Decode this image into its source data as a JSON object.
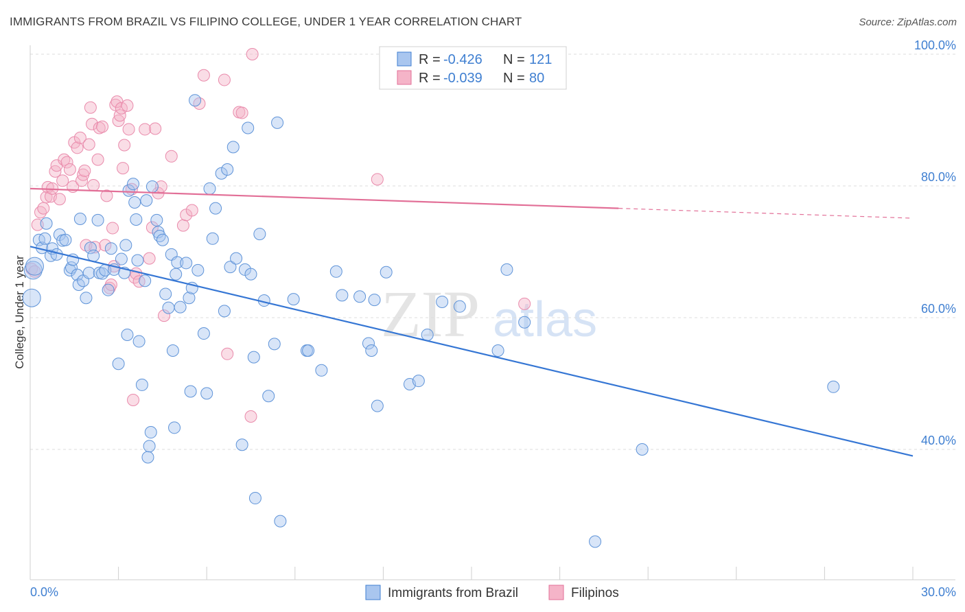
{
  "title": "IMMIGRANTS FROM BRAZIL VS FILIPINO COLLEGE, UNDER 1 YEAR CORRELATION CHART",
  "source": "Source: ZipAtlas.com",
  "watermark": {
    "zip": "ZIP",
    "atlas": "atlas"
  },
  "colors": {
    "blue": "#3f7fd1",
    "blue_fill": "#a9c6ef",
    "pink": "#e26f97",
    "pink_fill": "#f5b4c8",
    "grid": "#d9d9d9"
  },
  "legend": {
    "rows": [
      {
        "r_label": "R =",
        "r_value": "-0.426",
        "n_label": "N =",
        "n_value": "121"
      },
      {
        "r_label": "R =",
        "r_value": "-0.039",
        "n_label": "N =",
        "n_value": "80"
      }
    ]
  },
  "bottom_legend": [
    "Immigrants from Brazil",
    "Filipinos"
  ],
  "chart_data": {
    "type": "scatter",
    "title": "IMMIGRANTS FROM BRAZIL VS FILIPINO COLLEGE, UNDER 1 YEAR CORRELATION CHART",
    "xlabel": "",
    "ylabel": "College, Under 1 year",
    "xlim": [
      0,
      30
    ],
    "ylim": [
      20,
      100
    ],
    "x_tick_labels": [
      "0.0%",
      "30.0%"
    ],
    "y_tick_labels": [
      "100.0%",
      "80.0%",
      "60.0%",
      "40.0%"
    ],
    "y_ticks": [
      100,
      80,
      60,
      40
    ],
    "grid": true,
    "legend_position": "top-center",
    "series": [
      {
        "name": "Immigrants from Brazil",
        "color": "#3f7fd1",
        "r": -0.426,
        "n": 121,
        "trend": {
          "x": [
            0,
            30
          ],
          "y": [
            70.8,
            39.0
          ]
        },
        "points": [
          [
            0.05,
            63.0
          ],
          [
            0.1,
            67.2
          ],
          [
            0.15,
            67.8
          ],
          [
            0.3,
            71.8
          ],
          [
            0.4,
            70.6
          ],
          [
            0.5,
            72.0
          ],
          [
            0.55,
            74.3
          ],
          [
            0.7,
            69.4
          ],
          [
            0.75,
            70.5
          ],
          [
            0.9,
            69.6
          ],
          [
            1.0,
            72.6
          ],
          [
            1.1,
            71.7
          ],
          [
            1.2,
            71.8
          ],
          [
            1.35,
            67.2
          ],
          [
            1.4,
            67.6
          ],
          [
            1.45,
            68.8
          ],
          [
            1.6,
            66.5
          ],
          [
            1.65,
            65.0
          ],
          [
            1.7,
            75.0
          ],
          [
            1.8,
            65.6
          ],
          [
            1.9,
            63.0
          ],
          [
            2.0,
            66.8
          ],
          [
            2.05,
            70.6
          ],
          [
            2.15,
            69.4
          ],
          [
            2.3,
            74.8
          ],
          [
            2.35,
            66.8
          ],
          [
            2.45,
            66.7
          ],
          [
            2.55,
            67.2
          ],
          [
            2.65,
            64.2
          ],
          [
            2.75,
            70.5
          ],
          [
            2.85,
            67.3
          ],
          [
            3.0,
            53.0
          ],
          [
            3.1,
            68.9
          ],
          [
            3.2,
            66.8
          ],
          [
            3.25,
            71.0
          ],
          [
            3.3,
            57.4
          ],
          [
            3.35,
            79.3
          ],
          [
            3.5,
            80.3
          ],
          [
            3.55,
            77.5
          ],
          [
            3.6,
            74.9
          ],
          [
            3.65,
            68.7
          ],
          [
            3.7,
            56.4
          ],
          [
            3.8,
            49.8
          ],
          [
            3.9,
            65.6
          ],
          [
            3.95,
            77.8
          ],
          [
            4.0,
            38.8
          ],
          [
            4.05,
            40.5
          ],
          [
            4.1,
            42.6
          ],
          [
            4.15,
            79.9
          ],
          [
            4.3,
            74.8
          ],
          [
            4.35,
            73.0
          ],
          [
            4.4,
            72.4
          ],
          [
            4.5,
            71.8
          ],
          [
            4.6,
            63.6
          ],
          [
            4.7,
            61.5
          ],
          [
            4.8,
            69.6
          ],
          [
            4.85,
            55.0
          ],
          [
            4.9,
            43.3
          ],
          [
            4.95,
            66.6
          ],
          [
            5.0,
            68.4
          ],
          [
            5.1,
            61.6
          ],
          [
            5.3,
            68.3
          ],
          [
            5.4,
            63.0
          ],
          [
            5.45,
            48.8
          ],
          [
            5.5,
            64.5
          ],
          [
            5.6,
            93.0
          ],
          [
            5.7,
            67.2
          ],
          [
            5.9,
            57.6
          ],
          [
            6.0,
            48.5
          ],
          [
            6.1,
            79.6
          ],
          [
            6.2,
            72.0
          ],
          [
            6.3,
            76.6
          ],
          [
            6.5,
            81.9
          ],
          [
            6.6,
            61.0
          ],
          [
            6.7,
            82.5
          ],
          [
            6.8,
            67.7
          ],
          [
            6.9,
            85.9
          ],
          [
            7.0,
            69.0
          ],
          [
            7.2,
            40.7
          ],
          [
            7.3,
            67.3
          ],
          [
            7.4,
            88.8
          ],
          [
            7.5,
            66.6
          ],
          [
            7.6,
            54.0
          ],
          [
            7.65,
            32.6
          ],
          [
            7.8,
            72.7
          ],
          [
            7.95,
            62.6
          ],
          [
            8.1,
            48.1
          ],
          [
            8.3,
            56.0
          ],
          [
            8.4,
            89.6
          ],
          [
            8.5,
            29.1
          ],
          [
            8.95,
            62.8
          ],
          [
            9.4,
            55.0
          ],
          [
            9.45,
            55.0
          ],
          [
            9.9,
            52.0
          ],
          [
            10.4,
            67.0
          ],
          [
            10.6,
            63.4
          ],
          [
            11.2,
            63.2
          ],
          [
            11.5,
            56.1
          ],
          [
            11.6,
            55.0
          ],
          [
            11.7,
            62.7
          ],
          [
            11.8,
            46.6
          ],
          [
            12.1,
            66.9
          ],
          [
            12.9,
            49.9
          ],
          [
            13.2,
            50.4
          ],
          [
            13.5,
            57.4
          ],
          [
            14.0,
            62.4
          ],
          [
            14.6,
            61.7
          ],
          [
            15.9,
            55.0
          ],
          [
            16.2,
            67.3
          ],
          [
            16.8,
            59.3
          ],
          [
            19.2,
            26.0
          ],
          [
            20.8,
            40.0
          ],
          [
            27.3,
            49.5
          ]
        ]
      },
      {
        "name": "Filipinos",
        "color": "#e26f97",
        "r": -0.039,
        "n": 80,
        "trend": {
          "x": [
            0,
            20
          ],
          "y": [
            79.6,
            76.6
          ]
        },
        "trend_dashed": {
          "x": [
            20,
            30
          ],
          "y": [
            76.6,
            75.1
          ]
        },
        "points": [
          [
            0.05,
            67.4
          ],
          [
            0.15,
            67.0
          ],
          [
            0.25,
            74.1
          ],
          [
            0.35,
            76.0
          ],
          [
            0.45,
            76.6
          ],
          [
            0.55,
            78.3
          ],
          [
            0.6,
            79.8
          ],
          [
            0.7,
            78.4
          ],
          [
            0.75,
            79.6
          ],
          [
            0.85,
            82.2
          ],
          [
            0.9,
            83.1
          ],
          [
            1.0,
            78.0
          ],
          [
            1.1,
            80.8
          ],
          [
            1.15,
            84.0
          ],
          [
            1.25,
            83.6
          ],
          [
            1.35,
            82.5
          ],
          [
            1.45,
            79.9
          ],
          [
            1.5,
            86.6
          ],
          [
            1.6,
            85.8
          ],
          [
            1.7,
            87.3
          ],
          [
            1.75,
            80.8
          ],
          [
            1.8,
            81.7
          ],
          [
            1.85,
            82.3
          ],
          [
            1.9,
            71.0
          ],
          [
            2.0,
            86.3
          ],
          [
            2.05,
            91.9
          ],
          [
            2.1,
            89.4
          ],
          [
            2.15,
            80.1
          ],
          [
            2.2,
            70.7
          ],
          [
            2.3,
            84.0
          ],
          [
            2.35,
            88.8
          ],
          [
            2.45,
            89.0
          ],
          [
            2.55,
            71.0
          ],
          [
            2.6,
            78.5
          ],
          [
            2.7,
            64.5
          ],
          [
            2.75,
            65.0
          ],
          [
            2.8,
            73.6
          ],
          [
            2.85,
            67.8
          ],
          [
            2.9,
            92.3
          ],
          [
            2.95,
            92.8
          ],
          [
            3.0,
            89.9
          ],
          [
            3.05,
            90.7
          ],
          [
            3.1,
            91.8
          ],
          [
            3.15,
            82.7
          ],
          [
            3.2,
            86.2
          ],
          [
            3.3,
            92.2
          ],
          [
            3.35,
            88.6
          ],
          [
            3.45,
            79.5
          ],
          [
            3.5,
            47.5
          ],
          [
            3.55,
            66.1
          ],
          [
            3.6,
            66.7
          ],
          [
            3.7,
            65.5
          ],
          [
            3.9,
            88.6
          ],
          [
            4.05,
            69.0
          ],
          [
            4.15,
            73.7
          ],
          [
            4.25,
            88.7
          ],
          [
            4.35,
            78.9
          ],
          [
            4.45,
            79.9
          ],
          [
            4.55,
            60.3
          ],
          [
            4.8,
            84.5
          ],
          [
            5.2,
            74.0
          ],
          [
            5.3,
            75.6
          ],
          [
            5.5,
            76.3
          ],
          [
            5.75,
            92.5
          ],
          [
            5.9,
            96.8
          ],
          [
            6.6,
            96.1
          ],
          [
            6.7,
            54.5
          ],
          [
            7.1,
            91.2
          ],
          [
            7.2,
            91.1
          ],
          [
            7.5,
            45.0
          ],
          [
            7.55,
            100.0
          ],
          [
            11.8,
            81.0
          ],
          [
            16.8,
            62.1
          ]
        ]
      }
    ]
  }
}
